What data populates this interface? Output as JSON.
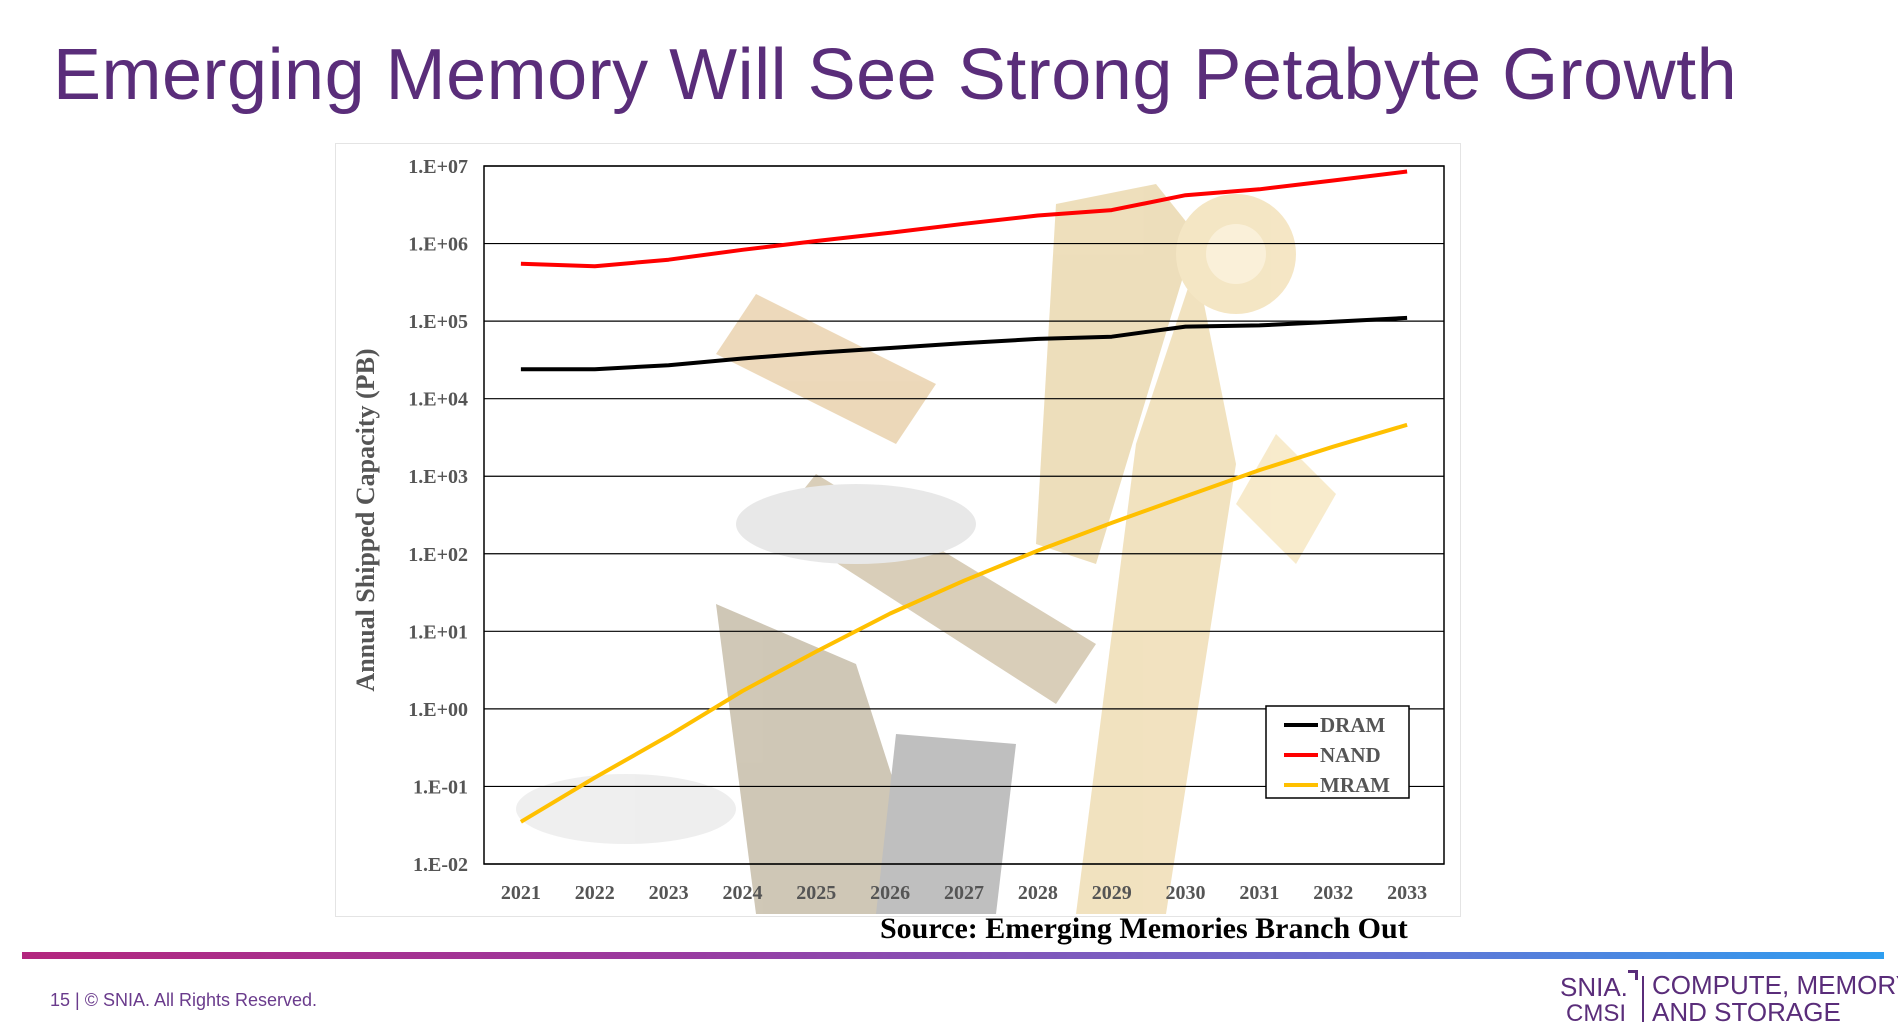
{
  "slide": {
    "title": "Emerging Memory Will See Strong Petabyte Growth",
    "source": "Source: Emerging Memories Branch Out",
    "footer": "15 | © SNIA. All Rights Reserved.",
    "logo": {
      "line1": "SNIA.",
      "line2": "CMSI",
      "tagline1": "COMPUTE, MEMORY,",
      "tagline2": "AND STORAGE"
    }
  },
  "colors": {
    "title": "#5a2d7a",
    "dram": "#000000",
    "nand": "#ff0000",
    "mram": "#ffc000"
  },
  "chart_data": {
    "type": "line",
    "title": "",
    "xlabel": "",
    "ylabel": "Annual Shipped Capacity (PB)",
    "yscale": "log",
    "ylim": [
      0.01,
      10000000
    ],
    "yticks": [
      0.01,
      0.1,
      1,
      10,
      100,
      1000,
      10000,
      100000,
      1000000,
      10000000
    ],
    "ytick_labels": [
      "1.E-02",
      "1.E-01",
      "1.E+00",
      "1.E+01",
      "1.E+02",
      "1.E+03",
      "1.E+04",
      "1.E+05",
      "1.E+06",
      "1.E+07"
    ],
    "grid": true,
    "legend": "bottom-right",
    "categories": [
      "2021",
      "2022",
      "2023",
      "2024",
      "2025",
      "2026",
      "2027",
      "2028",
      "2029",
      "2030",
      "2031",
      "2032",
      "2033"
    ],
    "series": [
      {
        "name": "DRAM",
        "color": "#000000",
        "values": [
          24000,
          24000,
          27000,
          33000,
          39000,
          45000,
          52000,
          59000,
          63000,
          85000,
          88000,
          98000,
          110000
        ]
      },
      {
        "name": "NAND",
        "color": "#ff0000",
        "values": [
          550000,
          510000,
          620000,
          830000,
          1080000,
          1380000,
          1800000,
          2300000,
          2700000,
          4200000,
          5000000,
          6500000,
          8500000
        ]
      },
      {
        "name": "MRAM",
        "color": "#ffc000",
        "values": [
          0.035,
          0.13,
          0.45,
          1.7,
          5.5,
          17,
          45,
          110,
          250,
          550,
          1200,
          2400,
          4600
        ]
      }
    ]
  }
}
